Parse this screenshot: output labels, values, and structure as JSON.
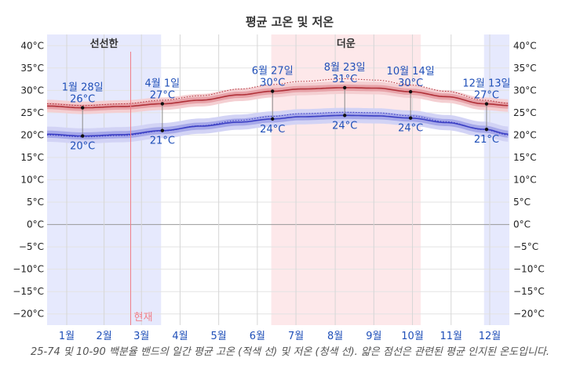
{
  "chart_data": {
    "type": "line",
    "title": "평균 고온 및 저온",
    "caption": "25-74 및 10-90 백분율 밴드의 일간 평균 고온 (적색 선) 및 저온 (청색 선). 얇은 점선은 관련된 평균 인지된 온도입니다.",
    "x_unit": "day_of_year",
    "xlim": [
      0,
      365
    ],
    "ylim": [
      -22.5,
      42.5
    ],
    "yticks": [
      40,
      35,
      30,
      25,
      20,
      15,
      10,
      5,
      0,
      -5,
      -10,
      -15,
      -20
    ],
    "ytick_labels": [
      "40°C",
      "35°C",
      "30°C",
      "25°C",
      "20°C",
      "15°C",
      "10°C",
      "5°C",
      "0°C",
      "−5°C",
      "−10°C",
      "−15°C",
      "−20°C"
    ],
    "months": [
      "1월",
      "2월",
      "3월",
      "4월",
      "5월",
      "6월",
      "7월",
      "8월",
      "9월",
      "10월",
      "11월",
      "12월"
    ],
    "seasons": [
      {
        "label": "선선한",
        "start": 0,
        "end": 90,
        "color": "#e6e9fd"
      },
      {
        "label": "",
        "start": 345,
        "end": 365,
        "color": "#e6e9fd"
      },
      {
        "label": "더운",
        "start": 177,
        "end": 295,
        "color": "#fde8ea"
      }
    ],
    "now": {
      "label": "현재",
      "day": 66
    },
    "high": {
      "name": "평균 고온",
      "x": [
        0,
        28,
        60,
        91,
        121,
        152,
        178,
        200,
        235,
        260,
        287,
        315,
        345,
        365
      ],
      "y": [
        26.5,
        26.1,
        26.4,
        27.0,
        27.8,
        29.0,
        29.8,
        30.3,
        30.6,
        30.5,
        29.7,
        28.6,
        27.0,
        26.6
      ],
      "band_inner": 0.7,
      "band_outer": 1.4
    },
    "low": {
      "name": "평균 저온",
      "x": [
        0,
        28,
        60,
        91,
        121,
        152,
        178,
        200,
        235,
        260,
        287,
        315,
        345,
        365
      ],
      "y": [
        20.2,
        19.8,
        20.1,
        21.0,
        22.0,
        22.9,
        23.6,
        24.1,
        24.4,
        24.3,
        23.8,
        22.8,
        21.3,
        20.2
      ],
      "band_inner": 0.8,
      "band_outer": 1.7
    },
    "feels_high": {
      "name": "평균 인지 고온",
      "x": [
        0,
        28,
        60,
        91,
        121,
        152,
        178,
        200,
        235,
        260,
        287,
        315,
        345,
        365
      ],
      "y": [
        27.0,
        26.6,
        27.0,
        27.8,
        28.8,
        30.3,
        31.3,
        32.0,
        32.6,
        32.3,
        31.2,
        29.8,
        27.8,
        27.1
      ]
    },
    "feels_low": {
      "name": "평균 인지 저온",
      "x": [
        0,
        28,
        60,
        91,
        121,
        152,
        178,
        200,
        235,
        260,
        287,
        315,
        345,
        365
      ],
      "y": [
        20.0,
        19.6,
        19.9,
        20.9,
        22.1,
        23.3,
        24.2,
        24.8,
        25.1,
        25.0,
        24.3,
        23.0,
        21.2,
        20.0
      ]
    },
    "annotations": [
      {
        "day": 28,
        "date": "1월 28일",
        "high": "26°C",
        "low": "20°C"
      },
      {
        "day": 91,
        "date": "4월 1일",
        "high": "27°C",
        "low": "21°C"
      },
      {
        "day": 178,
        "date": "6월 27일",
        "high": "30°C",
        "low": "24°C"
      },
      {
        "day": 235,
        "date": "8월 23일",
        "high": "31°C",
        "low": "24°C"
      },
      {
        "day": 287,
        "date": "10월 14일",
        "high": "30°C",
        "low": "24°C"
      },
      {
        "day": 347,
        "date": "12월 13일",
        "high": "27°C",
        "low": "21°C"
      }
    ],
    "colors": {
      "high_line": "#b03038",
      "high_band_inner": "#e7a2a8",
      "high_band_outer": "#f4cfd2",
      "low_line": "#3a3ec4",
      "low_band_inner": "#a6a8e9",
      "low_band_outer": "#d2d3f5",
      "label": "#1f4fb8",
      "now_line": "#f0808a"
    }
  }
}
